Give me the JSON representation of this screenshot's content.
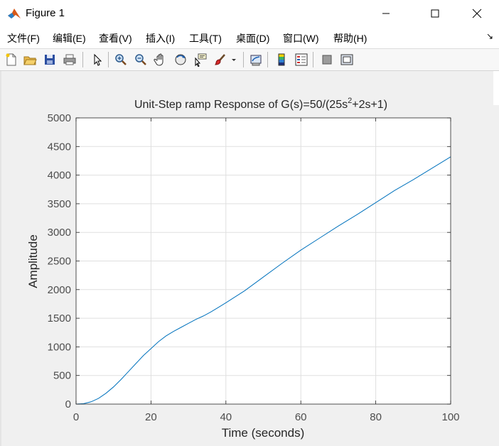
{
  "window": {
    "title": "Figure 1",
    "icon": "matlab-logo-icon"
  },
  "menu": [
    {
      "label": "文件(F)"
    },
    {
      "label": "编辑(E)"
    },
    {
      "label": "查看(V)"
    },
    {
      "label": "插入(I)"
    },
    {
      "label": "工具(T)"
    },
    {
      "label": "桌面(D)"
    },
    {
      "label": "窗口(W)"
    },
    {
      "label": "帮助(H)"
    }
  ],
  "menu_overflow": "↘",
  "toolbar": [
    "new-figure-icon",
    "open-file-icon",
    "save-icon",
    "print-icon",
    "select-arrow-icon",
    "zoom-in-icon",
    "zoom-out-icon",
    "pan-hand-icon",
    "rotate-3d-icon",
    "data-cursor-icon",
    "brush-icon",
    "brush-dropdown-icon",
    "link-plot-icon",
    "colorbar-icon",
    "legend-icon",
    "hide-plot-tools-icon",
    "show-plot-tools-icon"
  ],
  "chart_data": {
    "type": "line",
    "title_main": "Unit-Step ramp Response of G(s)=50/(25s",
    "title_sup": "2",
    "title_end": "+2s+1)",
    "xlabel": "Time (seconds)",
    "ylabel": "Amplitude",
    "xlim": [
      0,
      100
    ],
    "ylim": [
      0,
      5000
    ],
    "xticks": [
      "0",
      "20",
      "40",
      "60",
      "80",
      "100"
    ],
    "yticks": [
      "0",
      "500",
      "1000",
      "1500",
      "2000",
      "2500",
      "3000",
      "3500",
      "4000",
      "4500",
      "5000"
    ],
    "grid": true,
    "line_color": "#0072bd",
    "series": [
      {
        "x": [
          0,
          2,
          4,
          6,
          8,
          10,
          12,
          14,
          16,
          18,
          20,
          22,
          24,
          26,
          28,
          30,
          32,
          34,
          36,
          38,
          40,
          45,
          50,
          55,
          60,
          65,
          70,
          75,
          80,
          85,
          90,
          95,
          100
        ],
        "values": [
          0,
          8,
          40,
          100,
          190,
          300,
          430,
          570,
          710,
          850,
          970,
          1090,
          1190,
          1270,
          1340,
          1410,
          1480,
          1540,
          1610,
          1690,
          1770,
          1980,
          2220,
          2460,
          2690,
          2900,
          3110,
          3310,
          3520,
          3730,
          3920,
          4120,
          4320
        ]
      }
    ]
  }
}
